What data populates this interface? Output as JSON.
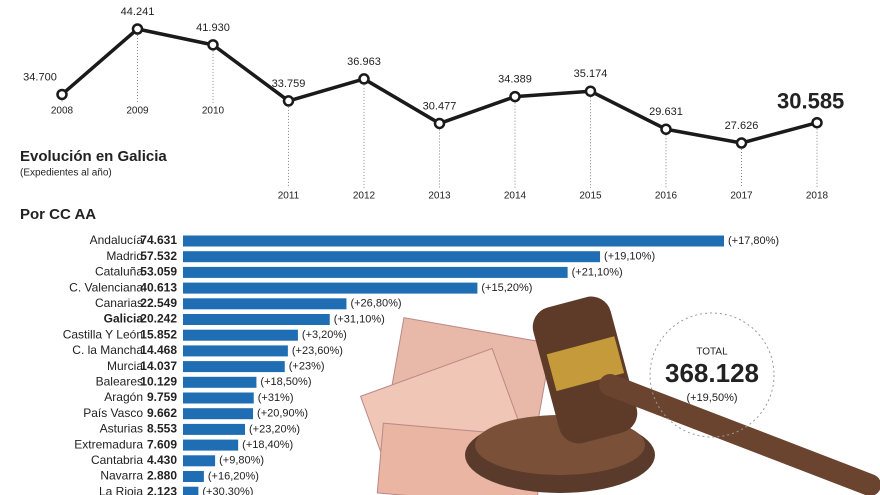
{
  "chart_data": [
    {
      "type": "line",
      "title": "Evolución en Galicia",
      "subtitle": "(Expedientes al año)",
      "x": [
        2008,
        2009,
        2010,
        2011,
        2012,
        2013,
        2014,
        2015,
        2016,
        2017,
        2018
      ],
      "values": [
        34700,
        44241,
        41930,
        33759,
        36963,
        30477,
        34389,
        35174,
        29631,
        27626,
        30585
      ],
      "value_labels": [
        "34.700",
        "44.241",
        "41.930",
        "33.759",
        "36.963",
        "30.477",
        "34.389",
        "35.174",
        "29.631",
        "27.626",
        "30.585"
      ],
      "color": "#1a1a1a"
    },
    {
      "type": "hbar",
      "title": "Por CC AA",
      "categories": [
        "Andalucía",
        "Madrid",
        "Cataluña",
        "C. Valenciana",
        "Canarias",
        "Galicia",
        "Castilla Y León",
        "C. la Mancha",
        "Murcia",
        "Baleares",
        "Aragón",
        "País Vasco",
        "Asturias",
        "Extremadura",
        "Cantabria",
        "Navarra",
        "La Rioja"
      ],
      "values": [
        74631,
        57532,
        53059,
        40613,
        22549,
        20242,
        15852,
        14468,
        14037,
        10129,
        9759,
        9662,
        8553,
        7609,
        4430,
        2880,
        2123
      ],
      "value_labels": [
        "74.631",
        "57.532",
        "53.059",
        "40.613",
        "22.549",
        "20.242",
        "15.852",
        "14.468",
        "14.037",
        "10.129",
        "9.759",
        "9.662",
        "8.553",
        "7.609",
        "4.430",
        "2.880",
        "2.123"
      ],
      "changes": [
        "(+17,80%)",
        "(+19,10%)",
        "(+21,10%)",
        "(+15,20%)",
        "(+26,80%)",
        "(+31,10%)",
        "(+3,20%)",
        "(+23,60%)",
        "(+23%)",
        "(+18,50%)",
        "(+31%)",
        "(+20,90%)",
        "(+23,20%)",
        "(+18,40%)",
        "(+9,80%)",
        "(+16,20%)",
        "(+30,30%)"
      ],
      "highlight_index": 5,
      "color": "#1f6db3",
      "total_label": "TOTAL",
      "total": "368.128",
      "total_change": "(+19,50%)"
    }
  ]
}
